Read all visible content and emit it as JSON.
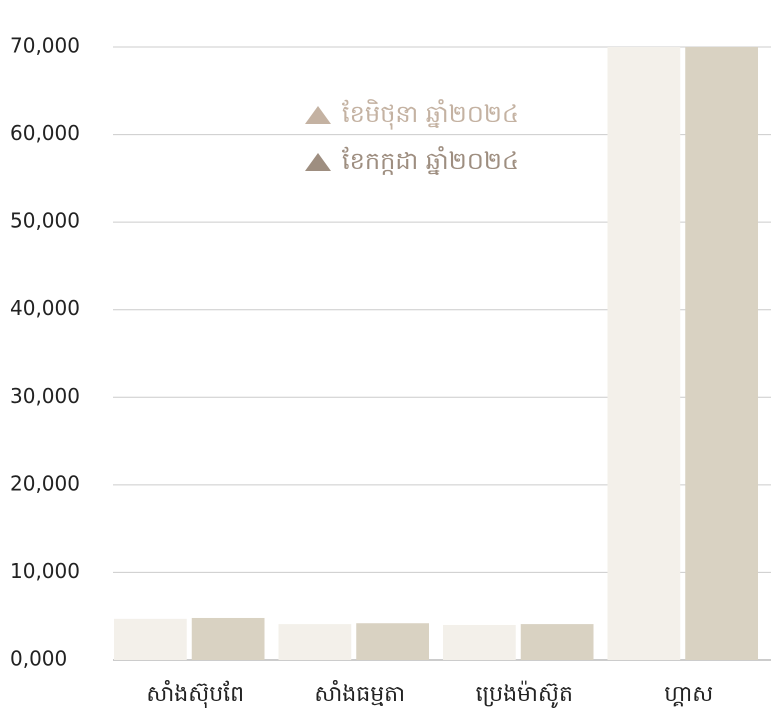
{
  "chart_data": {
    "type": "bar",
    "categories": [
      "សាំងស៊ុបពែ",
      "សាំងធម្មតា",
      "ប្រេងម៉ាស៊ូត",
      "ហ្គាស"
    ],
    "series": [
      {
        "name": "ខែមិថុនា ឆ្នាំ២០២៤",
        "color": "#f3f0ea",
        "legend_color": "#c4b2a2",
        "values": [
          4700,
          4100,
          4000,
          70000
        ]
      },
      {
        "name": "ខែកក្កដា ឆ្នាំ២០២៤",
        "color": "#d9d2c2",
        "legend_color": "#9e8e80",
        "values": [
          4800,
          4200,
          4100,
          70000
        ]
      }
    ],
    "ylim": [
      0,
      70000
    ],
    "yticks": [
      {
        "value": 0,
        "label": "0,000"
      },
      {
        "value": 10000,
        "label": "10,000"
      },
      {
        "value": 20000,
        "label": "20,000"
      },
      {
        "value": 30000,
        "label": "30,000"
      },
      {
        "value": 40000,
        "label": "40,000"
      },
      {
        "value": 50000,
        "label": "50,000"
      },
      {
        "value": 60000,
        "label": "60,000"
      },
      {
        "value": 70000,
        "label": "70,000"
      }
    ],
    "grid": true
  }
}
